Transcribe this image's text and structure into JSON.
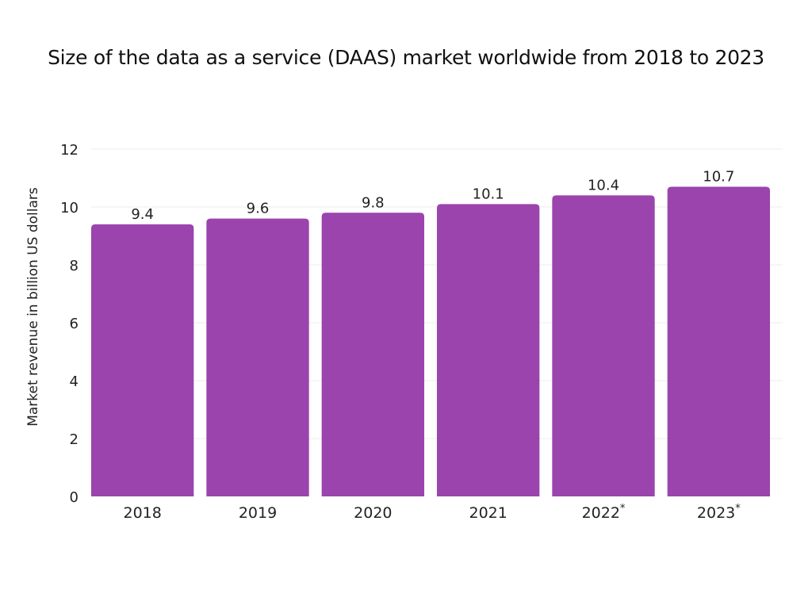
{
  "colors": {
    "bar": "#9b44ad",
    "gridline": "#eeeeee",
    "text": "#222222"
  },
  "chart_data": {
    "type": "bar",
    "title": "Size of the data as a service (DAAS) market worldwide from 2018 to 2023",
    "xlabel": "",
    "ylabel": "Market revenue in billion US dollars",
    "categories": [
      "2018",
      "2019",
      "2020",
      "2021",
      "2022",
      "2023"
    ],
    "category_notes": [
      "",
      "",
      "",
      "",
      "*",
      "*"
    ],
    "values": [
      9.4,
      9.6,
      9.8,
      10.1,
      10.4,
      10.7
    ],
    "value_labels": [
      "9.4",
      "9.6",
      "9.8",
      "10.1",
      "10.4",
      "10.7"
    ],
    "ylim": [
      0,
      12
    ],
    "yticks": [
      0,
      2,
      4,
      6,
      8,
      10,
      12
    ],
    "grid": true,
    "legend": "none"
  }
}
